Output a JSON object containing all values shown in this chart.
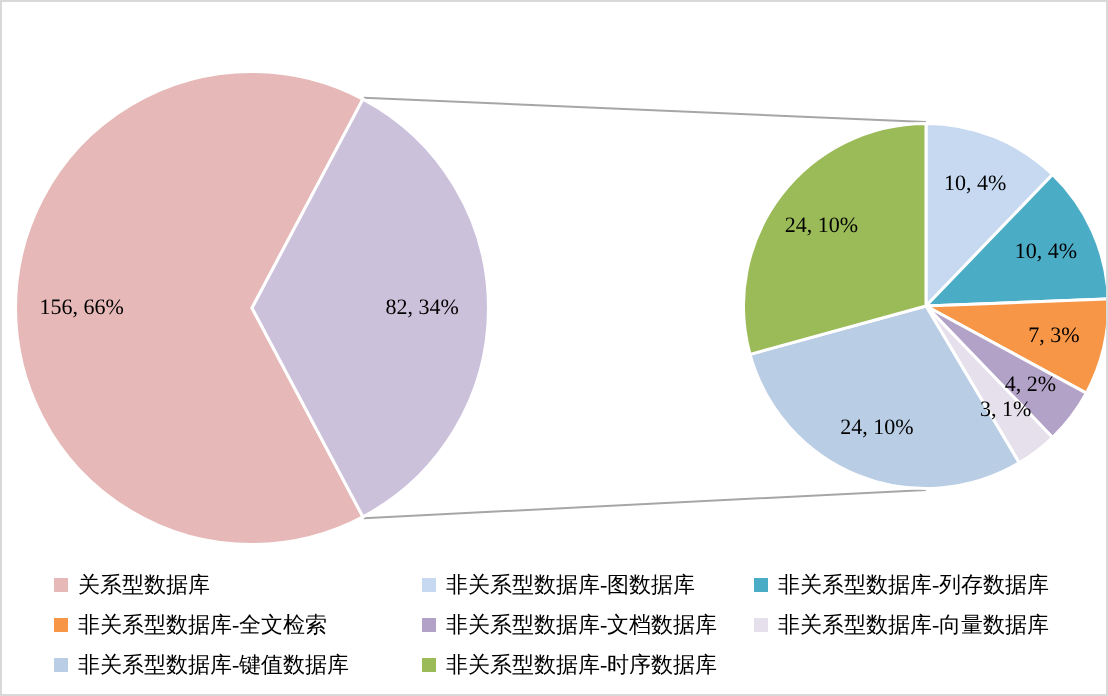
{
  "chart_data": [
    {
      "type": "pie",
      "categories": [
        "关系型数据库",
        null
      ],
      "values": [
        156,
        82
      ],
      "colors": [
        "#e6b9b8",
        "#ccc1da"
      ],
      "value_labels": [
        "156, 66%",
        "82, 34%"
      ],
      "legend": "bottom"
    },
    {
      "type": "pie",
      "categories": [
        "非关系型数据库-图数据库",
        "非关系型数据库-列存数据库",
        "非关系型数据库-全文检索",
        "非关系型数据库-文档数据库",
        "非关系型数据库-向量数据库",
        "非关系型数据库-键值数据库",
        "非关系型数据库-时序数据库"
      ],
      "values": [
        10,
        10,
        7,
        4,
        3,
        24,
        24
      ],
      "colors": [
        "#c6d9f1",
        "#4bacc6",
        "#f79646",
        "#b3a2c7",
        "#e6e0ec",
        "#b9cde5",
        "#9bbb59"
      ],
      "value_labels": [
        "10, 4%",
        "10, 4%",
        "7, 3%",
        "4, 2%",
        "3, 1%",
        "24, 10%",
        "24, 10%"
      ],
      "legend": "bottom"
    }
  ]
}
